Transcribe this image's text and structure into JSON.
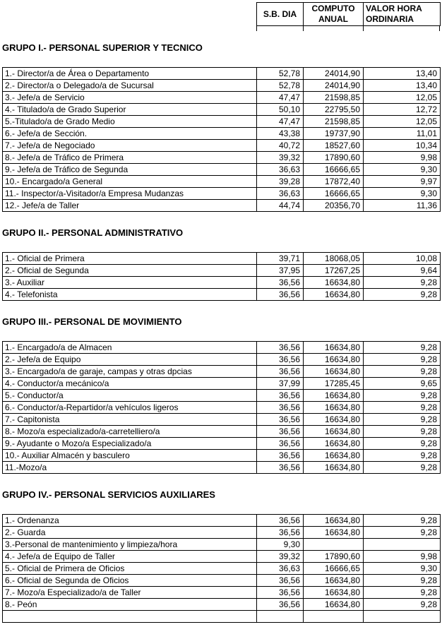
{
  "table_header": {
    "col1_line1": "S.B. DIA",
    "col2_line1": "COMPUTO",
    "col2_line2": "ANUAL",
    "col3_line1": "VALOR HORA",
    "col3_line2": "ORDINARIA"
  },
  "groups": [
    {
      "title": "GRUPO I.- PERSONAL SUPERIOR Y TECNICO",
      "rows": [
        {
          "label": "1.- Director/a de Área o Departamento",
          "sb_dia": "52,78",
          "computo_anual": "24014,90",
          "valor_hora": "13,40"
        },
        {
          "label": "2.- Director/a o Delegado/a de Sucursal",
          "sb_dia": "52,78",
          "computo_anual": "24014,90",
          "valor_hora": "13,40"
        },
        {
          "label": "3.- Jefe/a de Servicio",
          "sb_dia": "47,47",
          "computo_anual": "21598,85",
          "valor_hora": "12,05"
        },
        {
          "label": "4.- Titulado/a de Grado Superior",
          "sb_dia": "50,10",
          "computo_anual": "22795,50",
          "valor_hora": "12,72"
        },
        {
          "label": "5.-Titulado/a de Grado Medio",
          "sb_dia": "47,47",
          "computo_anual": "21598,85",
          "valor_hora": "12,05"
        },
        {
          "label": "6.- Jefe/a de Sección.",
          "sb_dia": "43,38",
          "computo_anual": "19737,90",
          "valor_hora": "11,01"
        },
        {
          "label": "7.- Jefe/a de Negociado",
          "sb_dia": "40,72",
          "computo_anual": "18527,60",
          "valor_hora": "10,34"
        },
        {
          "label": "8.- Jefe/a de Tráfico de Primera",
          "sb_dia": "39,32",
          "computo_anual": "17890,60",
          "valor_hora": "9,98"
        },
        {
          "label": "9.- Jefe/a de Tráfico de Segunda",
          "sb_dia": "36,63",
          "computo_anual": "16666,65",
          "valor_hora": "9,30"
        },
        {
          "label": "10.- Encargado/a General",
          "sb_dia": "39,28",
          "computo_anual": "17872,40",
          "valor_hora": "9,97"
        },
        {
          "label": "11.- Inspector/a-Visitador/a Empresa Mudanzas",
          "sb_dia": "36,63",
          "computo_anual": "16666,65",
          "valor_hora": "9,30"
        },
        {
          "label": "12.- Jefe/a de Taller",
          "sb_dia": "44,74",
          "computo_anual": "20356,70",
          "valor_hora": "11,36"
        }
      ]
    },
    {
      "title": "GRUPO II.- PERSONAL ADMINISTRATIVO",
      "rows": [
        {
          "label": "1.- Oficial de Primera",
          "sb_dia": "39,71",
          "computo_anual": "18068,05",
          "valor_hora": "10,08"
        },
        {
          "label": "2.- Oficial de Segunda",
          "sb_dia": "37,95",
          "computo_anual": "17267,25",
          "valor_hora": "9,64"
        },
        {
          "label": "3.- Auxiliar",
          "sb_dia": "36,56",
          "computo_anual": "16634,80",
          "valor_hora": "9,28"
        },
        {
          "label": "4.- Telefonista",
          "sb_dia": "36,56",
          "computo_anual": "16634,80",
          "valor_hora": "9,28"
        }
      ]
    },
    {
      "title": "GRUPO III.- PERSONAL DE MOVIMIENTO",
      "rows": [
        {
          "label": "1.- Encargado/a de Almacen",
          "sb_dia": "36,56",
          "computo_anual": "16634,80",
          "valor_hora": "9,28"
        },
        {
          "label": "2.- Jefe/a de Equipo",
          "sb_dia": "36,56",
          "computo_anual": "16634,80",
          "valor_hora": "9,28"
        },
        {
          "label": "3.- Encargado/a de garaje, campas y otras dpcias",
          "sb_dia": "36,56",
          "computo_anual": "16634,80",
          "valor_hora": "9,28"
        },
        {
          "label": "4.- Conductor/a mecánico/a",
          "sb_dia": "37,99",
          "computo_anual": "17285,45",
          "valor_hora": "9,65"
        },
        {
          "label": "5.- Conductor/a",
          "sb_dia": "36,56",
          "computo_anual": "16634,80",
          "valor_hora": "9,28"
        },
        {
          "label": "6.- Conductor/a-Repartidor/a vehículos ligeros",
          "sb_dia": "36,56",
          "computo_anual": "16634,80",
          "valor_hora": "9,28"
        },
        {
          "label": "7.- Capitonista",
          "sb_dia": "36,56",
          "computo_anual": "16634,80",
          "valor_hora": "9,28"
        },
        {
          "label": "8.- Mozo/a especializado/a-carretelliero/a",
          "sb_dia": "36,56",
          "computo_anual": "16634,80",
          "valor_hora": "9,28"
        },
        {
          "label": "9.- Ayudante o Mozo/a Especializado/a",
          "sb_dia": "36,56",
          "computo_anual": "16634,80",
          "valor_hora": "9,28"
        },
        {
          "label": "10.- Auxiliar Almacén y basculero",
          "sb_dia": "36,56",
          "computo_anual": "16634,80",
          "valor_hora": "9,28"
        },
        {
          "label": "11.-Mozo/a",
          "sb_dia": "36,56",
          "computo_anual": "16634,80",
          "valor_hora": "9,28"
        }
      ]
    },
    {
      "title": "GRUPO IV.- PERSONAL SERVICIOS AUXILIARES",
      "rows": [
        {
          "label": "1.- Ordenanza",
          "sb_dia": "36,56",
          "computo_anual": "16634,80",
          "valor_hora": "9,28"
        },
        {
          "label": "2.- Guarda",
          "sb_dia": "36,56",
          "computo_anual": "16634,80",
          "valor_hora": "9,28"
        },
        {
          "label": "3.-Personal de mantenimiento y limpieza/hora",
          "sb_dia": "9,30",
          "computo_anual": "",
          "valor_hora": ""
        },
        {
          "label": "4.- Jefe/a de Equipo de Taller",
          "sb_dia": "39,32",
          "computo_anual": "17890,60",
          "valor_hora": "9,98"
        },
        {
          "label": "5.- Oficial de Primera de Oficios",
          "sb_dia": "36,63",
          "computo_anual": "16666,65",
          "valor_hora": "9,30"
        },
        {
          "label": "6.- Oficial de Segunda de Oficios",
          "sb_dia": "36,56",
          "computo_anual": "16634,80",
          "valor_hora": "9,28"
        },
        {
          "label": "7.- Mozo/a Especializado/a de Taller",
          "sb_dia": "36,56",
          "computo_anual": "16634,80",
          "valor_hora": "9,28"
        },
        {
          "label": "8.- Peón",
          "sb_dia": "36,56",
          "computo_anual": "16634,80",
          "valor_hora": "9,28"
        }
      ]
    }
  ]
}
